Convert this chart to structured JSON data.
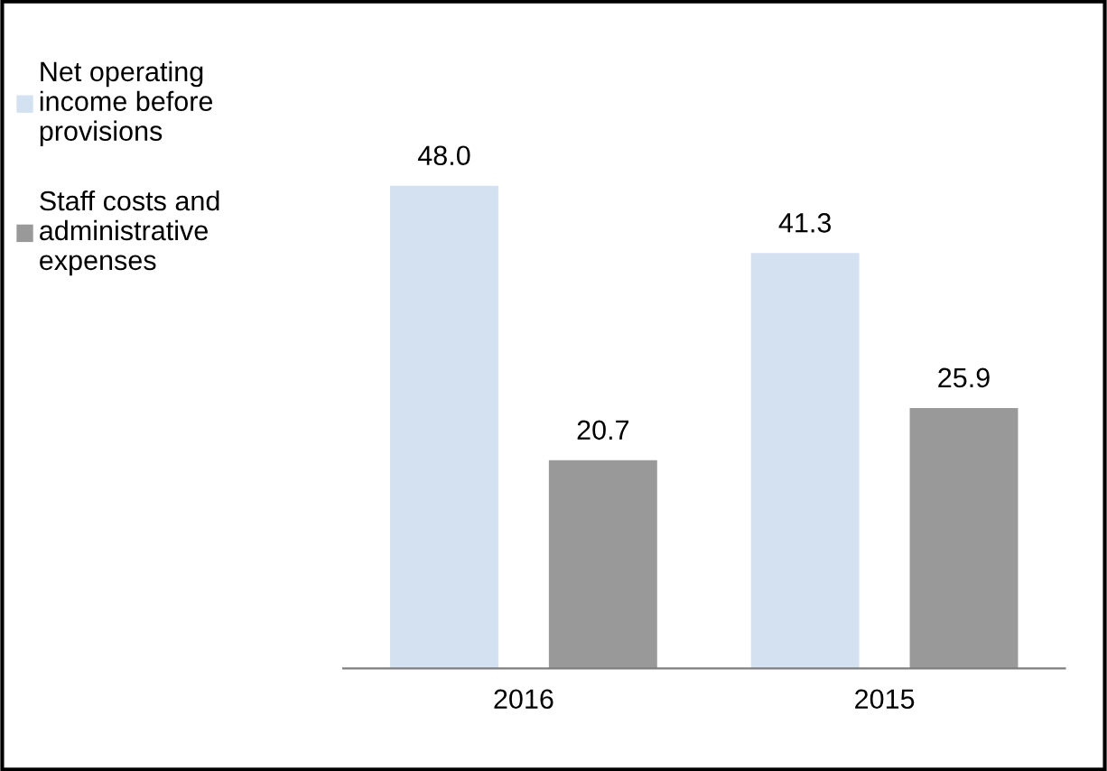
{
  "chart_data": {
    "type": "bar",
    "categories": [
      "2016",
      "2015"
    ],
    "series": [
      {
        "name": "Net operating\nincome before\nprovisions",
        "color": "#d4e1f1",
        "values": [
          48.0,
          41.3
        ],
        "value_labels": [
          "48.0",
          "41.3"
        ]
      },
      {
        "name": "Staff costs and\nadministrative\nexpenses",
        "color": "#999999",
        "values": [
          20.7,
          25.9
        ],
        "value_labels": [
          "20.7",
          "25.9"
        ]
      }
    ],
    "legend": "top left",
    "grid": false
  }
}
